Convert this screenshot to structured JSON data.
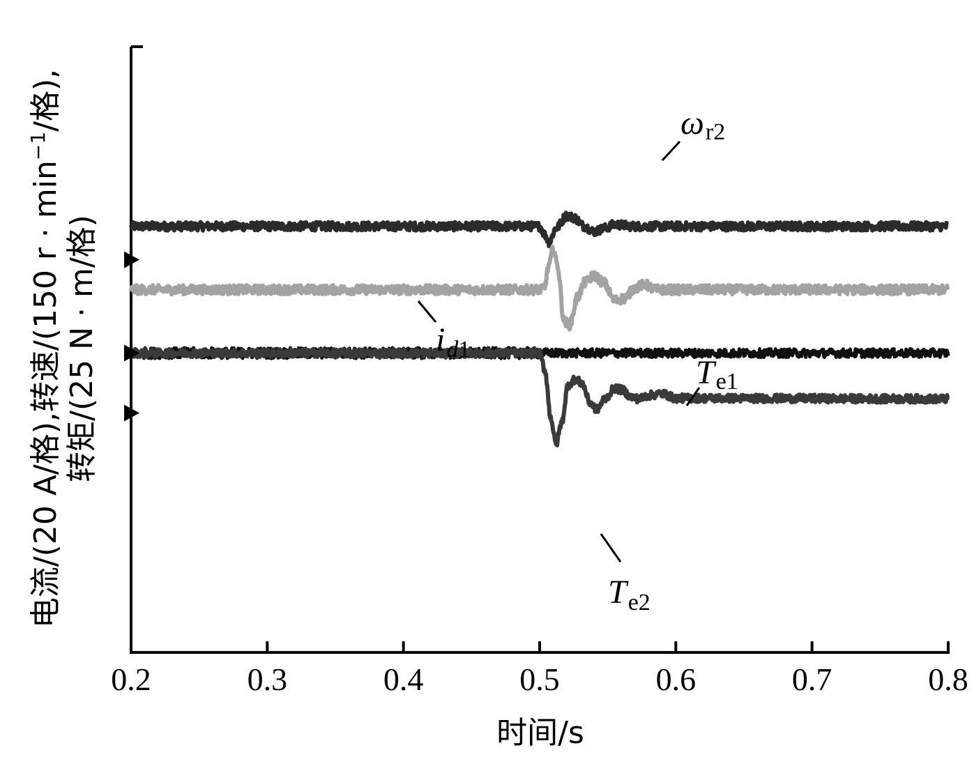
{
  "chart_data": {
    "type": "line",
    "xlabel": "时间/s",
    "ylabel_line1": "电流/(20 A/格),转速/(150 r · min",
    "ylabel_sup": "−1",
    "ylabel_line1_end": "/格),",
    "ylabel_line2": "转矩/(25 N · m/格)",
    "xlim": [
      0.2,
      0.8
    ],
    "x_ticks": [
      {
        "value": 0.2,
        "label": "0.2"
      },
      {
        "value": 0.3,
        "label": "0.3"
      },
      {
        "value": 0.4,
        "label": "0.4"
      },
      {
        "value": 0.5,
        "label": "0.5"
      },
      {
        "value": 0.6,
        "label": "0.6"
      },
      {
        "value": 0.7,
        "label": "0.7"
      },
      {
        "value": 0.8,
        "label": "0.8"
      }
    ],
    "ylim_divisions": [
      -8.5,
      8.7
    ],
    "grid": false,
    "channel_markers": [
      {
        "name": "i_d1 zero",
        "value": 2.65
      },
      {
        "name": "T_e1 zero",
        "value": 0.0
      },
      {
        "name": "T_e2 zero",
        "value": -1.7
      }
    ],
    "event_time": 0.5,
    "series": [
      {
        "name": "ωr2",
        "main": "ω",
        "sub": "r2",
        "color": "#2b2b2b",
        "baseline": 3.6,
        "noise": 0.12,
        "points": [
          [
            0.2,
            3.6
          ],
          [
            0.5,
            3.6
          ],
          [
            0.504,
            3.35
          ],
          [
            0.507,
            3.15
          ],
          [
            0.512,
            3.55
          ],
          [
            0.52,
            3.9
          ],
          [
            0.525,
            3.85
          ],
          [
            0.533,
            3.6
          ],
          [
            0.54,
            3.45
          ],
          [
            0.548,
            3.55
          ],
          [
            0.555,
            3.65
          ],
          [
            0.57,
            3.6
          ],
          [
            0.8,
            3.6
          ]
        ]
      },
      {
        "name": "id1",
        "main": "i",
        "sub": "d1",
        "color": "#a3a3a3",
        "baseline": 1.8,
        "noise": 0.13,
        "points": [
          [
            0.2,
            1.8
          ],
          [
            0.503,
            1.8
          ],
          [
            0.507,
            2.5
          ],
          [
            0.51,
            3.0
          ],
          [
            0.513,
            2.5
          ],
          [
            0.518,
            0.9
          ],
          [
            0.522,
            0.8
          ],
          [
            0.528,
            1.6
          ],
          [
            0.533,
            2.0
          ],
          [
            0.54,
            2.2
          ],
          [
            0.547,
            2.0
          ],
          [
            0.555,
            1.5
          ],
          [
            0.562,
            1.55
          ],
          [
            0.57,
            1.85
          ],
          [
            0.577,
            1.95
          ],
          [
            0.585,
            1.8
          ],
          [
            0.8,
            1.8
          ]
        ]
      },
      {
        "name": "Te1",
        "main": "T",
        "sub": "e1",
        "color": "#111111",
        "baseline": 0.0,
        "noise": 0.12,
        "points": [
          [
            0.2,
            0.0
          ],
          [
            0.8,
            0.0
          ]
        ]
      },
      {
        "name": "Te2",
        "main": "T",
        "sub": "e2",
        "color": "#3a3a3a",
        "baseline": 0.0,
        "noise": 0.11,
        "points": [
          [
            0.2,
            0.0
          ],
          [
            0.5,
            0.0
          ],
          [
            0.504,
            -0.5
          ],
          [
            0.508,
            -1.8
          ],
          [
            0.512,
            -2.6
          ],
          [
            0.516,
            -2.0
          ],
          [
            0.521,
            -0.9
          ],
          [
            0.526,
            -0.75
          ],
          [
            0.531,
            -0.85
          ],
          [
            0.537,
            -1.4
          ],
          [
            0.542,
            -1.6
          ],
          [
            0.548,
            -1.3
          ],
          [
            0.555,
            -1.0
          ],
          [
            0.561,
            -1.05
          ],
          [
            0.567,
            -1.25
          ],
          [
            0.573,
            -1.3
          ],
          [
            0.58,
            -1.2
          ],
          [
            0.59,
            -1.15
          ],
          [
            0.6,
            -1.28
          ],
          [
            0.8,
            -1.3
          ]
        ]
      }
    ]
  }
}
